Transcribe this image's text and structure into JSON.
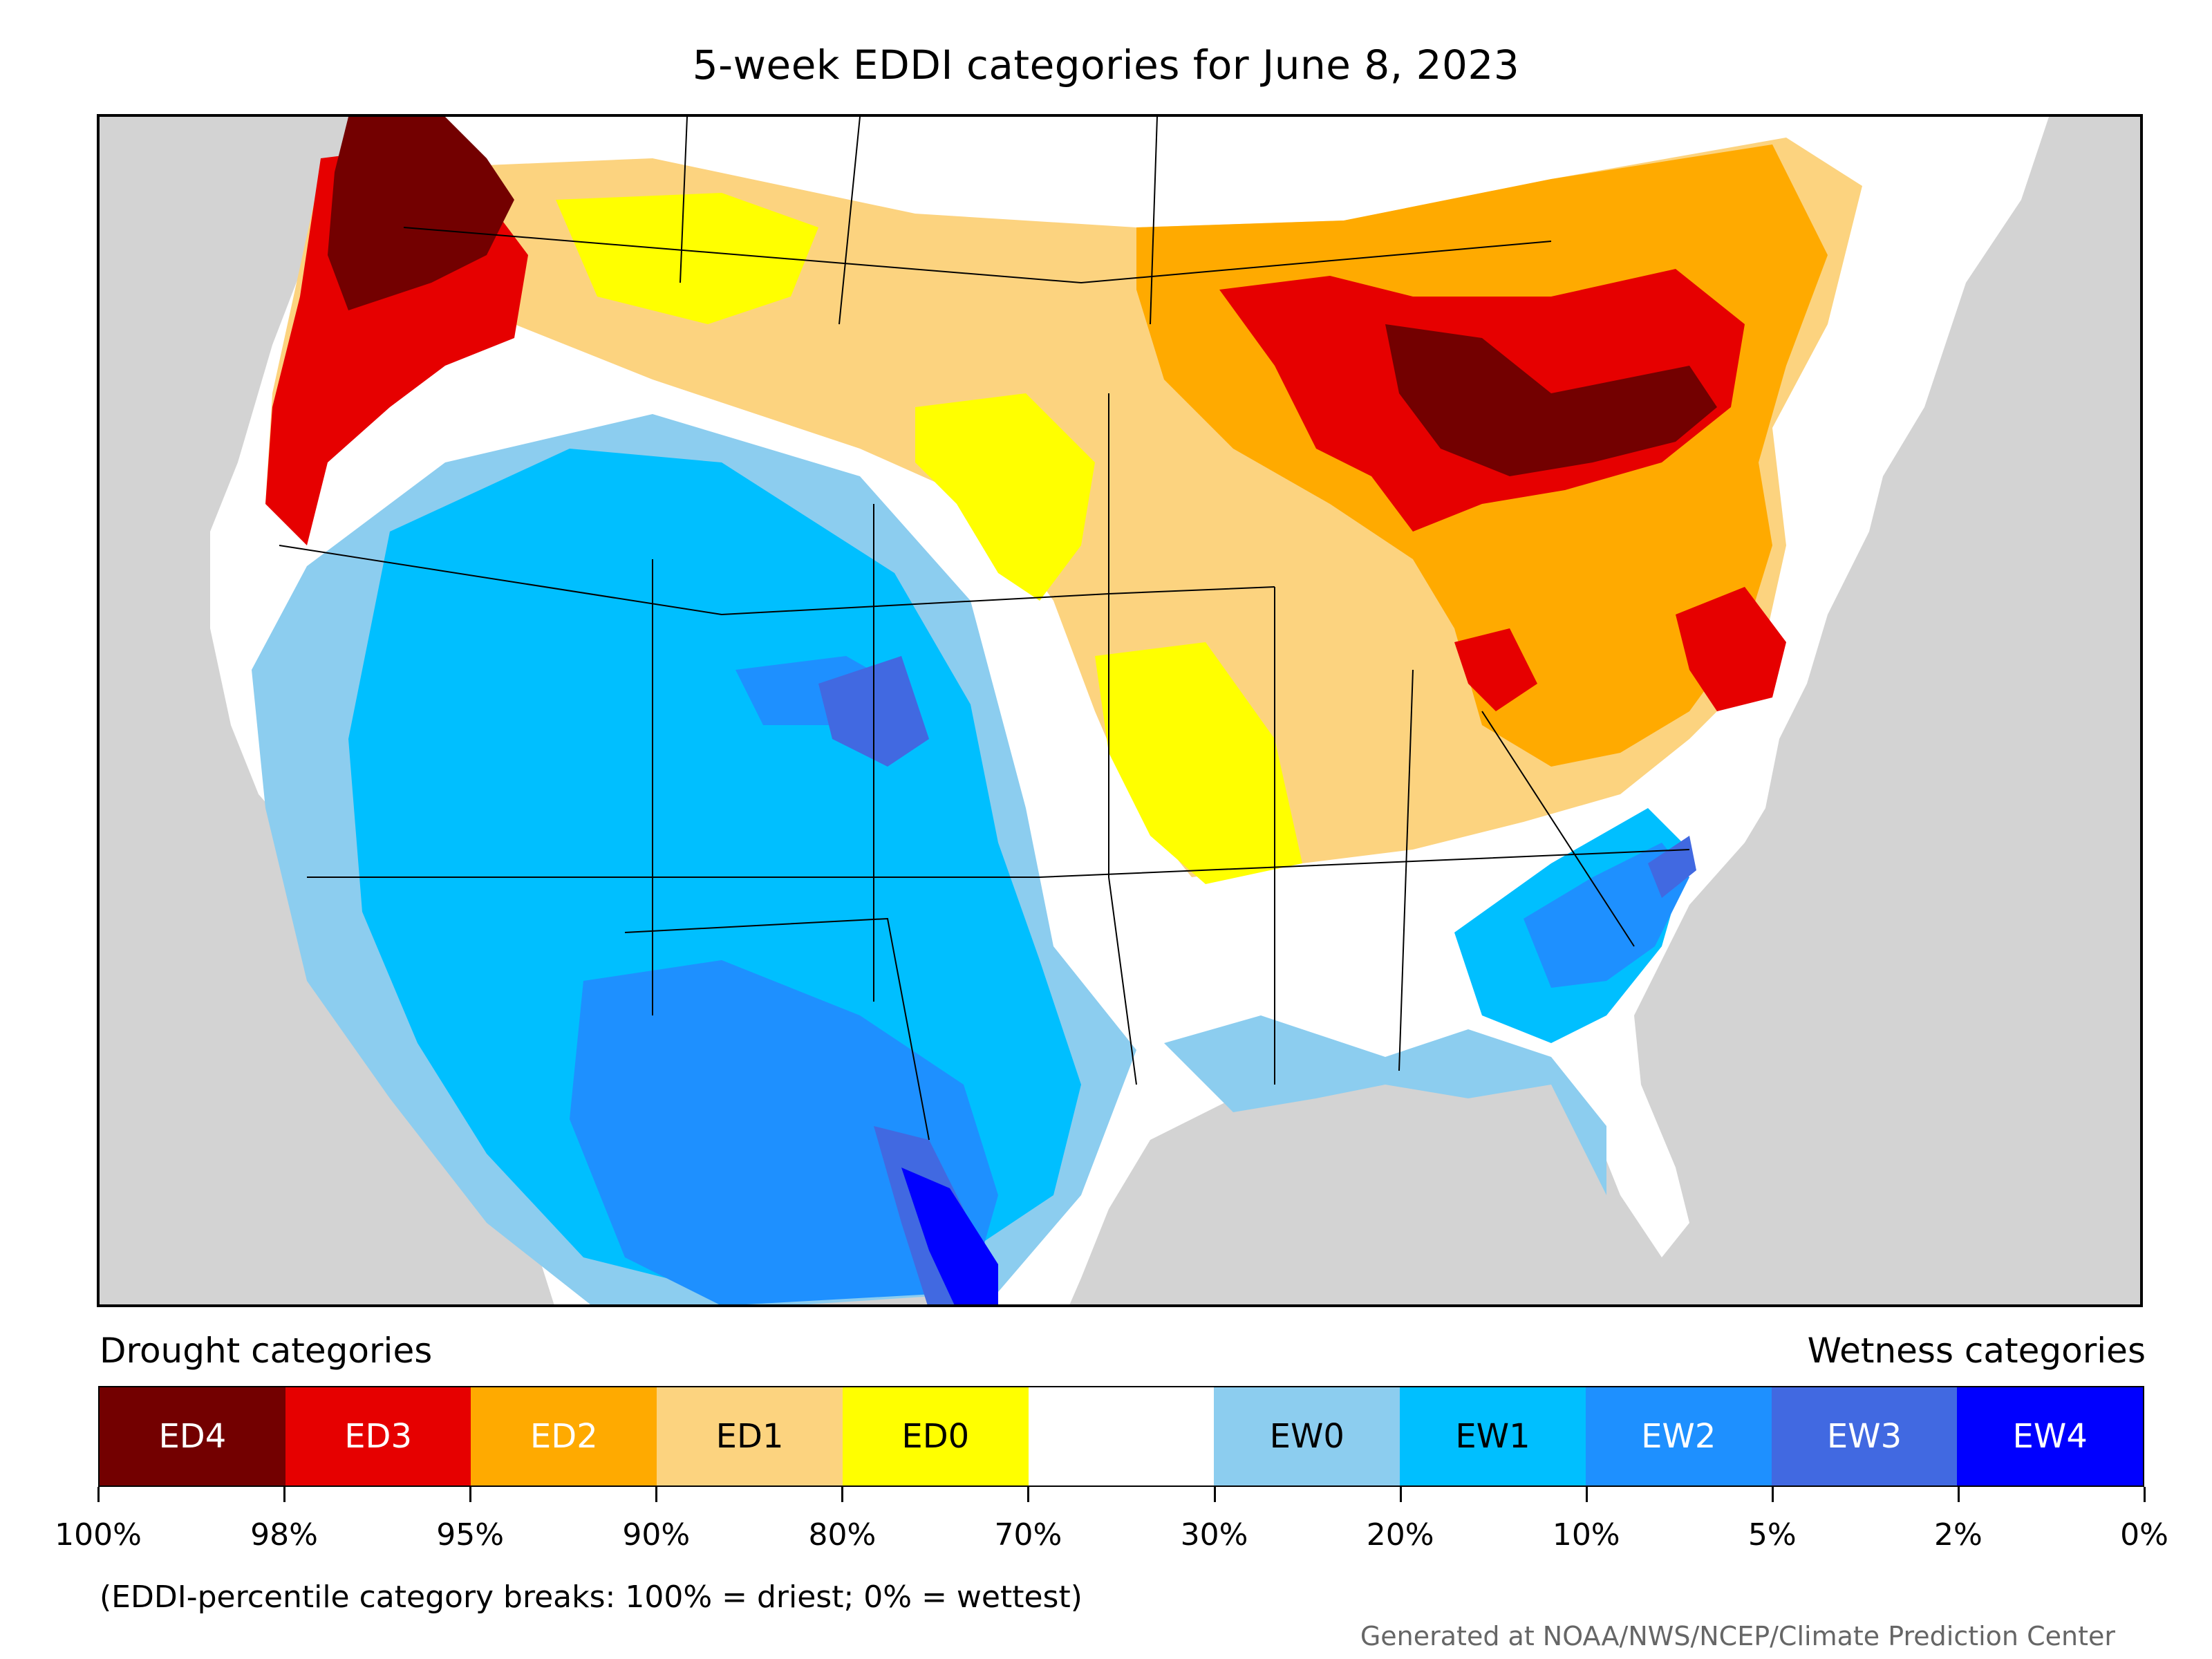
{
  "title": "5-week EDDI categories for June 8, 2023",
  "map": {
    "legend_title_left": "Drought categories",
    "legend_title_right": "Wetness categories",
    "categories": [
      {
        "label": "ED4",
        "color": "#730000",
        "text_color": "#ffffff"
      },
      {
        "label": "ED3",
        "color": "#e60000",
        "text_color": "#ffffff"
      },
      {
        "label": "ED2",
        "color": "#ffaa00",
        "text_color": "#ffffff"
      },
      {
        "label": "ED1",
        "color": "#fcd37f",
        "text_color": "#000000"
      },
      {
        "label": "ED0",
        "color": "#ffff00",
        "text_color": "#000000"
      },
      {
        "label": "",
        "color": "#ffffff",
        "text_color": "#000000"
      },
      {
        "label": "EW0",
        "color": "#8ccdef",
        "text_color": "#000000"
      },
      {
        "label": "EW1",
        "color": "#00bfff",
        "text_color": "#000000"
      },
      {
        "label": "EW2",
        "color": "#1e90ff",
        "text_color": "#ffffff"
      },
      {
        "label": "EW3",
        "color": "#4169e1",
        "text_color": "#ffffff"
      },
      {
        "label": "EW4",
        "color": "#0000ff",
        "text_color": "#ffffff"
      }
    ],
    "breaks": [
      "100%",
      "98%",
      "95%",
      "90%",
      "80%",
      "70%",
      "30%",
      "20%",
      "10%",
      "5%",
      "2%",
      "0%"
    ],
    "footnote": "(EDDI-percentile category breaks: 100% = driest; 0% = wettest)",
    "credit": "Generated at NOAA/NWS/NCEP/Climate Prediction Center",
    "background_color": "#d3d3d3"
  }
}
